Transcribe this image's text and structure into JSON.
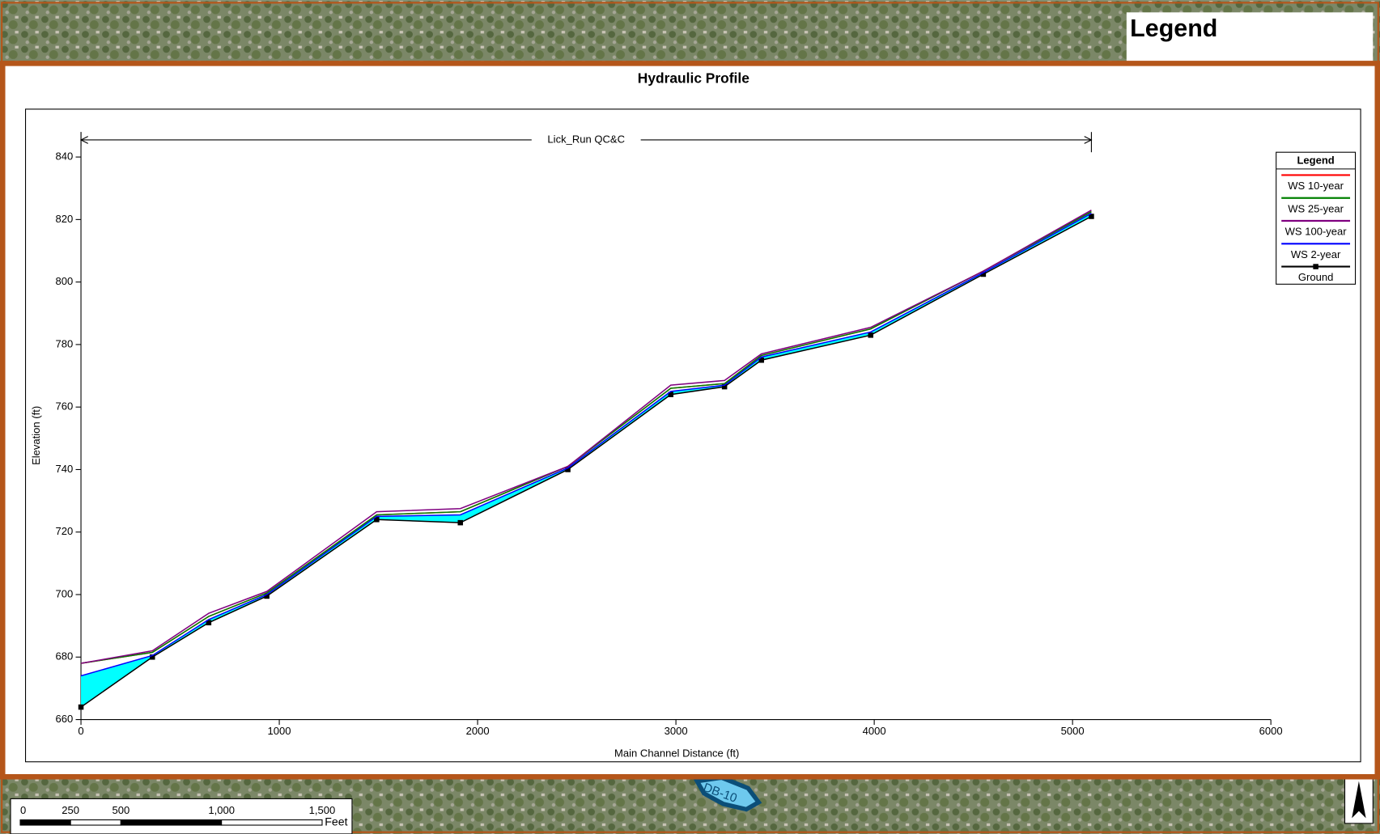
{
  "chart_data": {
    "type": "line",
    "title": "Hydraulic Profile",
    "x_label": "Main Channel Distance (ft)",
    "y_label": "Elevation (ft)",
    "annotation": {
      "text": "Lick_Run QC&C",
      "x": [
        0,
        5095
      ]
    },
    "legend_title": "Legend",
    "legend": "upper right",
    "x": [
      0,
      360,
      644,
      937,
      1491,
      1913,
      2455,
      2974,
      3245,
      3431,
      3982,
      4550,
      5095
    ],
    "series": [
      {
        "name": "WS  10-year",
        "color": "#ff0000",
        "values": [
          678,
          681.5,
          693,
          700.5,
          725.5,
          726.5,
          741,
          766,
          767.5,
          776.5,
          785,
          803.5,
          822.5
        ]
      },
      {
        "name": "WS  25-year",
        "color": "#008000",
        "values": [
          678,
          681.5,
          693,
          700.5,
          725.5,
          726.5,
          741,
          766,
          767.5,
          776.5,
          785,
          803.5,
          822.5
        ]
      },
      {
        "name": "WS  100-year",
        "color": "#800080",
        "values": [
          678,
          682,
          694,
          701,
          726.5,
          727.5,
          741,
          767,
          768.5,
          777,
          785.5,
          803.5,
          823
        ]
      },
      {
        "name": "WS  2-year",
        "color": "#0000ff",
        "values": [
          674,
          680.5,
          692,
          700,
          725,
          725.5,
          740.5,
          765,
          767,
          776,
          784,
          803,
          822
        ]
      },
      {
        "name": "Ground",
        "color": "#000000",
        "values": [
          664,
          680,
          691,
          699.5,
          724,
          723,
          740,
          764,
          766.5,
          775,
          783,
          802.5,
          821
        ],
        "markers": true,
        "fill_color": "#00ffff"
      }
    ],
    "xlim": [
      0,
      6000
    ],
    "xticks": [
      0,
      1000,
      2000,
      3000,
      4000,
      5000,
      6000
    ],
    "ylim": [
      660,
      848
    ],
    "yticks": [
      660,
      680,
      700,
      720,
      740,
      760,
      780,
      800,
      820,
      840
    ],
    "grid": false
  },
  "map": {
    "legend_title": "Legend",
    "basin_label": "DB-10",
    "scale_bar": {
      "ticks": [
        0,
        250,
        500,
        {
          "value": 1000,
          "label": "1,000"
        },
        {
          "value": 1500,
          "label": "1,500"
        }
      ],
      "unit": "Feet"
    }
  }
}
